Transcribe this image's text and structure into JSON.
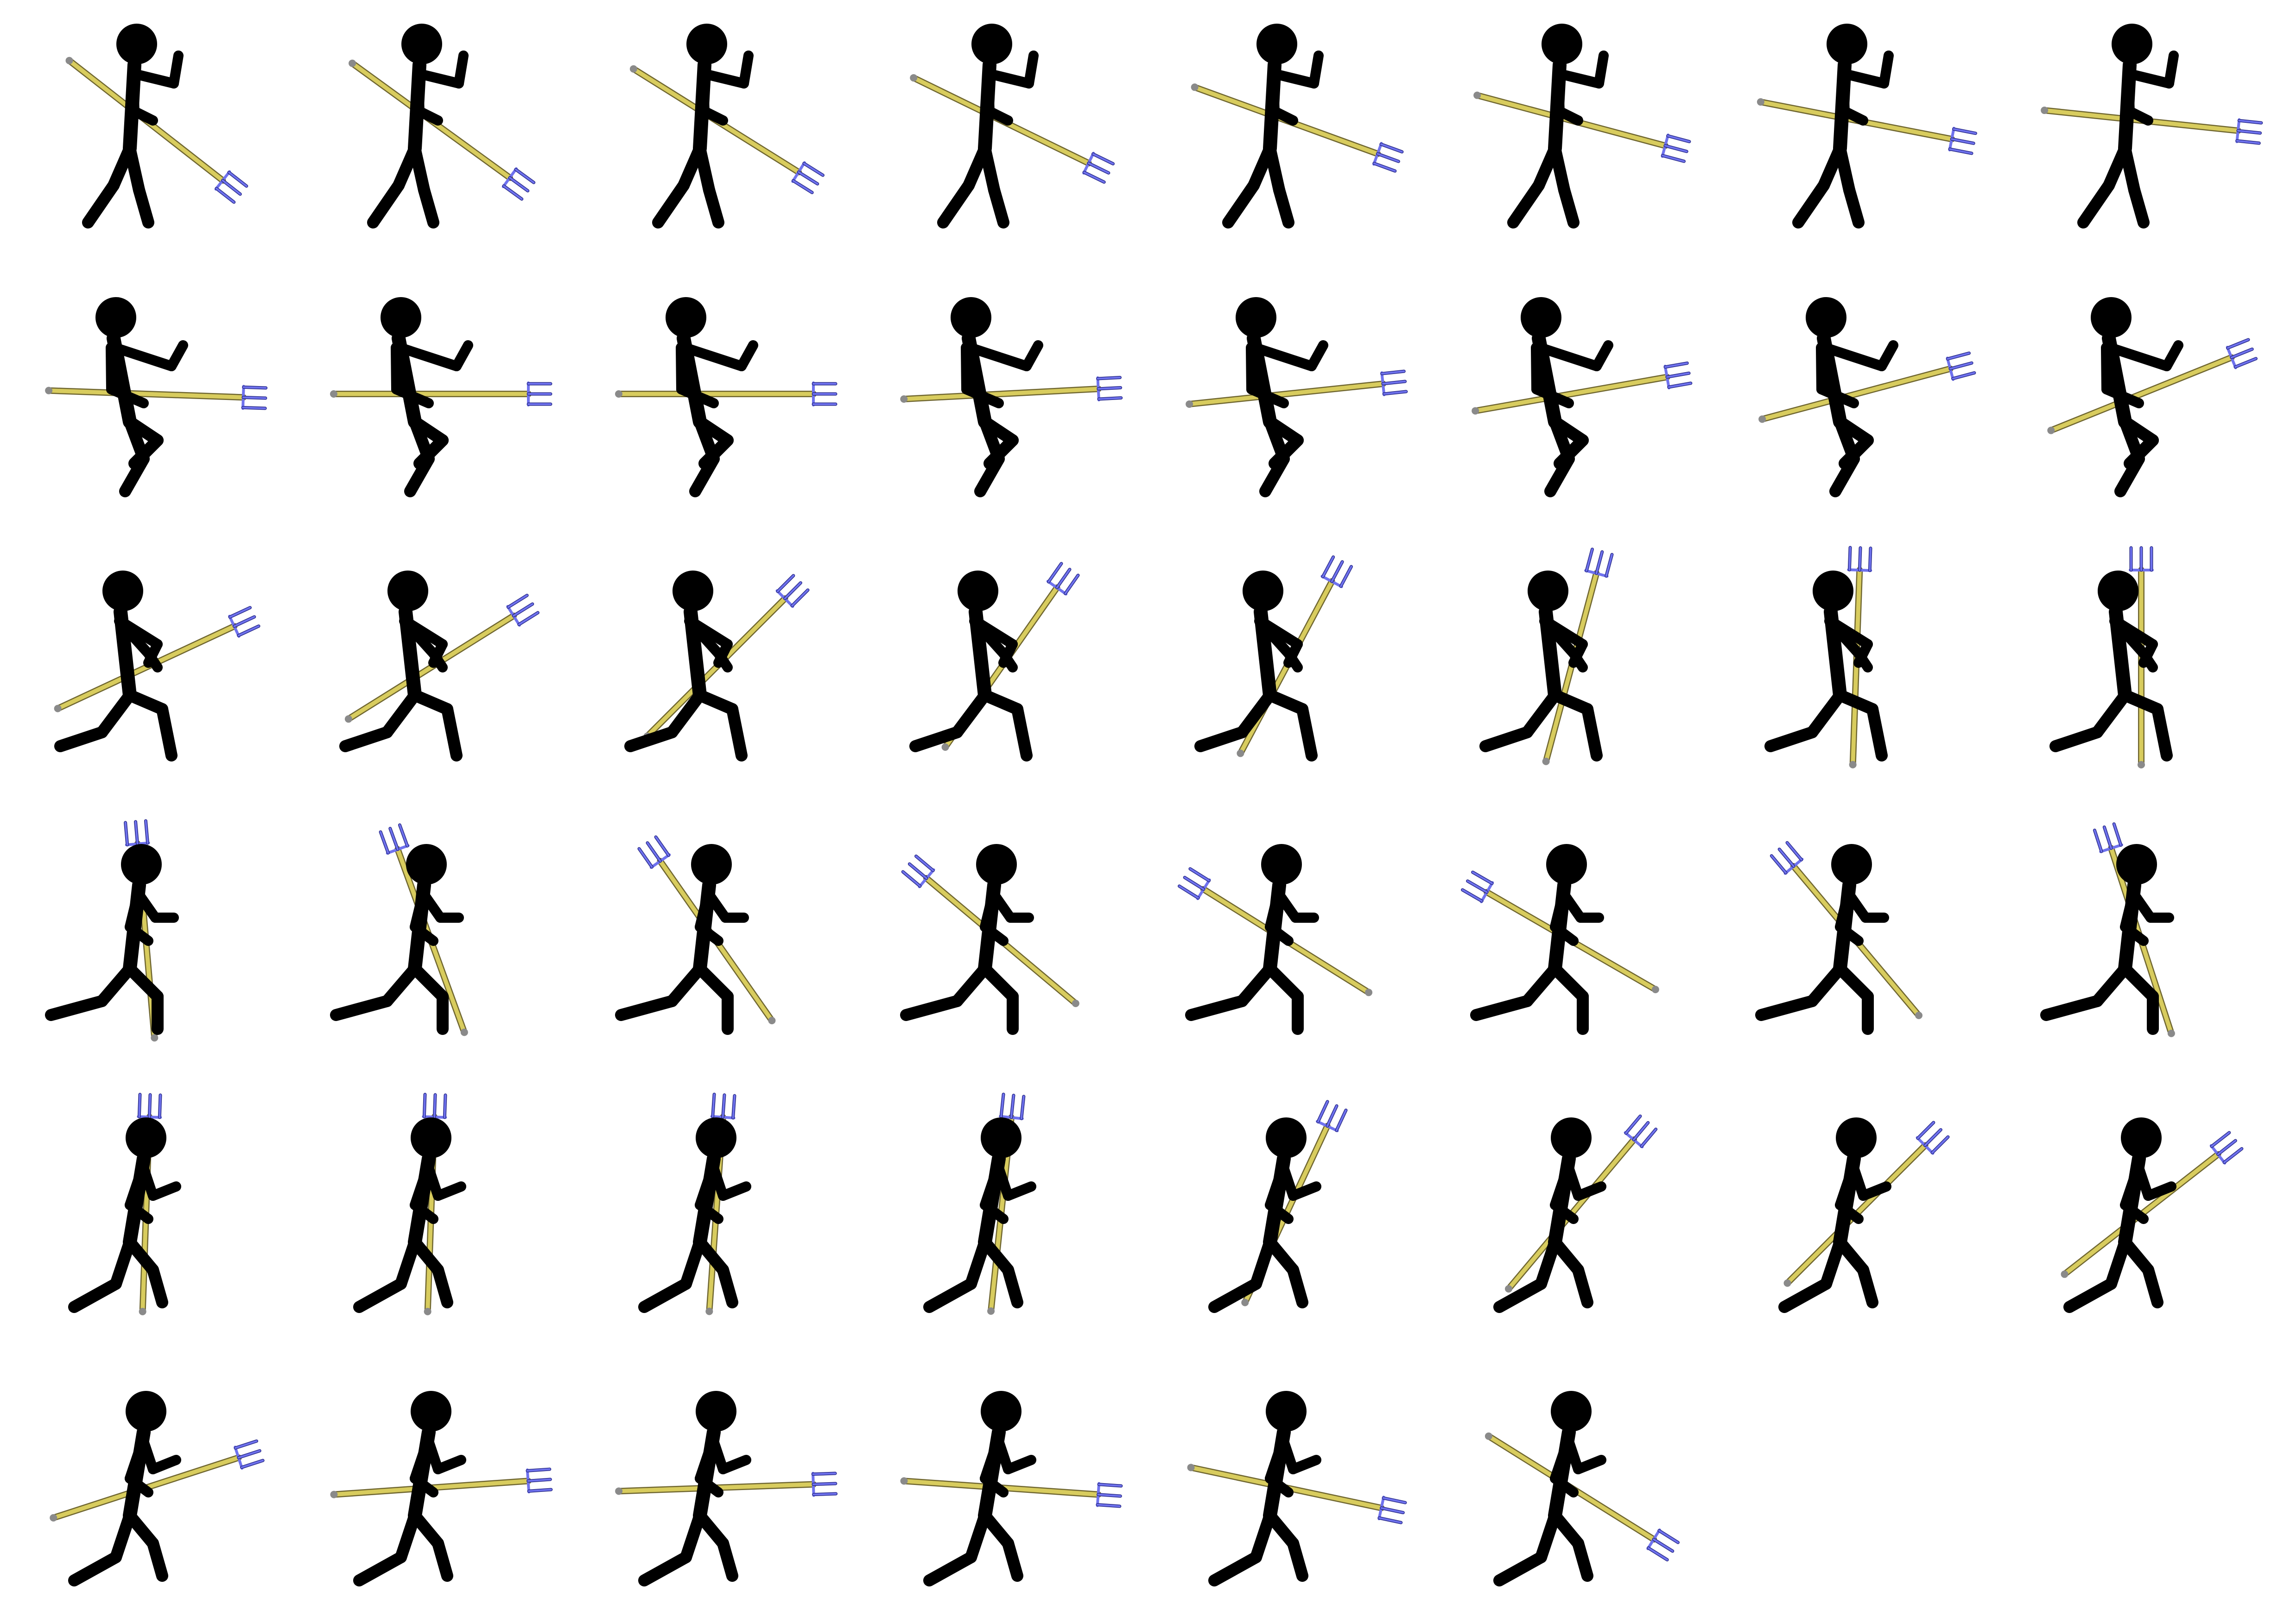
{
  "sprite_sheet": {
    "background": "#ffffff",
    "figure_color": "#000000",
    "shaft_color": "#d8cc5e",
    "shaft_edge_color": "#6f6630",
    "prong_color": "#6f72ee",
    "prong_edge_color": "#2a2c8a",
    "columns": 8,
    "rows": 6,
    "frame_count": 46,
    "figure_icon": "stick-figure-with-trident",
    "frames": [
      {
        "stance": "walk",
        "trident_deg": 38
      },
      {
        "stance": "walk",
        "trident_deg": 36
      },
      {
        "stance": "walk",
        "trident_deg": 32
      },
      {
        "stance": "walk",
        "trident_deg": 26
      },
      {
        "stance": "walk",
        "trident_deg": 20
      },
      {
        "stance": "walk",
        "trident_deg": 15
      },
      {
        "stance": "walk",
        "trident_deg": 11
      },
      {
        "stance": "walk",
        "trident_deg": 6
      },
      {
        "stance": "crouch",
        "trident_deg": 2
      },
      {
        "stance": "crouch",
        "trident_deg": 0
      },
      {
        "stance": "crouch",
        "trident_deg": 0
      },
      {
        "stance": "crouch",
        "trident_deg": -3
      },
      {
        "stance": "crouch",
        "trident_deg": -6
      },
      {
        "stance": "crouch",
        "trident_deg": -10
      },
      {
        "stance": "crouch",
        "trident_deg": -15
      },
      {
        "stance": "crouch",
        "trident_deg": -22
      },
      {
        "stance": "lunge",
        "trident_deg": -25
      },
      {
        "stance": "lunge",
        "trident_deg": -32
      },
      {
        "stance": "lunge",
        "trident_deg": -45
      },
      {
        "stance": "lunge",
        "trident_deg": -55
      },
      {
        "stance": "lunge",
        "trident_deg": -62
      },
      {
        "stance": "lunge",
        "trident_deg": -75
      },
      {
        "stance": "lunge",
        "trident_deg": -88
      },
      {
        "stance": "lunge",
        "trident_deg": -90
      },
      {
        "stance": "kneel",
        "trident_deg": -95
      },
      {
        "stance": "kneel",
        "trident_deg": -110
      },
      {
        "stance": "kneel",
        "trident_deg": -125
      },
      {
        "stance": "kneel",
        "trident_deg": -140
      },
      {
        "stance": "kneel",
        "trident_deg": -148
      },
      {
        "stance": "kneel",
        "trident_deg": -150
      },
      {
        "stance": "kneel",
        "trident_deg": -130
      },
      {
        "stance": "kneel",
        "trident_deg": -108
      },
      {
        "stance": "run",
        "trident_deg": -88
      },
      {
        "stance": "run",
        "trident_deg": -88
      },
      {
        "stance": "run",
        "trident_deg": -86
      },
      {
        "stance": "run",
        "trident_deg": -84
      },
      {
        "stance": "run",
        "trident_deg": -65
      },
      {
        "stance": "run",
        "trident_deg": -50
      },
      {
        "stance": "run",
        "trident_deg": -45
      },
      {
        "stance": "run",
        "trident_deg": -38
      },
      {
        "stance": "run",
        "trident_deg": -18
      },
      {
        "stance": "run",
        "trident_deg": -4
      },
      {
        "stance": "run",
        "trident_deg": -2
      },
      {
        "stance": "run",
        "trident_deg": 4
      },
      {
        "stance": "run",
        "trident_deg": 12
      },
      {
        "stance": "run",
        "trident_deg": 32
      }
    ]
  }
}
